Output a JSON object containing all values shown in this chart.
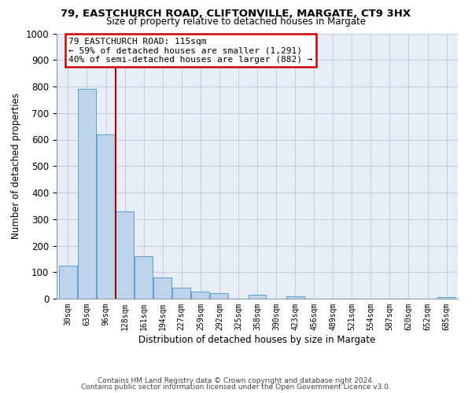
{
  "title1": "79, EASTCHURCH ROAD, CLIFTONVILLE, MARGATE, CT9 3HX",
  "title2": "Size of property relative to detached houses in Margate",
  "xlabel": "Distribution of detached houses by size in Margate",
  "ylabel": "Number of detached properties",
  "bar_labels": [
    "30sqm",
    "63sqm",
    "96sqm",
    "128sqm",
    "161sqm",
    "194sqm",
    "227sqm",
    "259sqm",
    "292sqm",
    "325sqm",
    "358sqm",
    "390sqm",
    "423sqm",
    "456sqm",
    "489sqm",
    "521sqm",
    "554sqm",
    "587sqm",
    "620sqm",
    "652sqm",
    "685sqm"
  ],
  "bar_values": [
    125,
    790,
    620,
    330,
    160,
    80,
    42,
    28,
    20,
    0,
    15,
    0,
    10,
    0,
    0,
    0,
    0,
    0,
    0,
    0,
    5
  ],
  "bar_color": "#bdd4ea",
  "bar_edge_color": "#5a9fd4",
  "vline_color": "#aa0000",
  "annotation_title": "79 EASTCHURCH ROAD: 115sqm",
  "annotation_line1": "← 59% of detached houses are smaller (1,291)",
  "annotation_line2": "40% of semi-detached houses are larger (882) →",
  "annotation_box_color": "#cc0000",
  "ylim": [
    0,
    1000
  ],
  "yticks": [
    0,
    100,
    200,
    300,
    400,
    500,
    600,
    700,
    800,
    900,
    1000
  ],
  "bg_color": "#e8eef8",
  "grid_color": "#c5cfe0",
  "footer1": "Contains HM Land Registry data © Crown copyright and database right 2024.",
  "footer2": "Contains public sector information licensed under the Open Government Licence v3.0."
}
